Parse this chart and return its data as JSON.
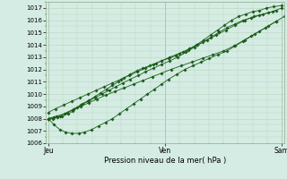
{
  "title": "",
  "xlabel": "Pression niveau de la mer( hPa )",
  "ylabel": "",
  "background_color": "#d5ece4",
  "grid_color": "#b8d4bc",
  "line_color": "#1a5c1a",
  "marker_color": "#1a5c1a",
  "ylim": [
    1006,
    1017.5
  ],
  "yticks": [
    1006,
    1007,
    1008,
    1009,
    1010,
    1011,
    1012,
    1013,
    1014,
    1015,
    1016,
    1017
  ],
  "xtick_labels": [
    "Jeu",
    "Ven",
    "Sam"
  ],
  "xtick_positions": [
    0,
    1,
    2
  ],
  "xlim": [
    -0.02,
    2.02
  ],
  "series_x": [
    [
      0.0,
      0.04,
      0.08,
      0.12,
      0.17,
      0.21,
      0.25,
      0.29,
      0.35,
      0.4,
      0.45,
      0.5,
      0.55,
      0.6,
      0.65,
      0.7,
      0.76,
      0.81,
      0.87,
      0.92,
      0.97,
      1.03,
      1.09,
      1.15,
      1.21,
      1.27,
      1.33,
      1.39,
      1.45,
      1.51,
      1.57,
      1.63,
      1.69,
      1.75,
      1.81,
      1.87,
      1.93,
      2.0
    ],
    [
      0.0,
      0.05,
      0.1,
      0.16,
      0.22,
      0.28,
      0.34,
      0.4,
      0.46,
      0.52,
      0.58,
      0.64,
      0.7,
      0.77,
      0.83,
      0.9,
      0.97,
      1.04,
      1.11,
      1.18,
      1.25,
      1.32,
      1.39,
      1.46,
      1.53,
      1.6,
      1.67,
      1.74,
      1.81,
      1.88,
      1.95
    ],
    [
      0.0,
      0.05,
      0.1,
      0.15,
      0.2,
      0.26,
      0.31,
      0.37,
      0.43,
      0.49,
      0.55,
      0.61,
      0.67,
      0.73,
      0.79,
      0.85,
      0.91,
      0.97,
      1.03,
      1.1,
      1.17,
      1.24,
      1.31,
      1.38,
      1.45,
      1.53,
      1.6,
      1.67,
      1.74,
      1.81,
      1.88,
      1.95,
      2.02
    ],
    [
      0.0,
      0.06,
      0.13,
      0.2,
      0.27,
      0.34,
      0.41,
      0.48,
      0.55,
      0.62,
      0.69,
      0.76,
      0.83,
      0.9,
      0.97,
      1.04,
      1.12,
      1.2,
      1.28,
      1.36,
      1.44,
      1.52,
      1.6,
      1.68,
      1.76,
      1.84,
      1.92,
      2.0
    ],
    [
      0.0,
      0.07,
      0.14,
      0.21,
      0.28,
      0.35,
      0.42,
      0.49,
      0.57,
      0.65,
      0.73,
      0.81,
      0.89,
      0.97,
      1.05,
      1.14,
      1.23,
      1.32,
      1.41,
      1.5,
      1.59,
      1.68,
      1.77,
      1.86,
      1.95
    ]
  ],
  "series_y": [
    [
      1008.0,
      1008.0,
      1008.1,
      1008.2,
      1008.4,
      1008.6,
      1008.9,
      1009.2,
      1009.5,
      1009.8,
      1010.1,
      1010.4,
      1010.7,
      1011.0,
      1011.3,
      1011.6,
      1011.9,
      1012.1,
      1012.3,
      1012.5,
      1012.7,
      1012.9,
      1013.1,
      1013.4,
      1013.7,
      1014.0,
      1014.4,
      1014.8,
      1015.2,
      1015.6,
      1016.0,
      1016.3,
      1016.5,
      1016.7,
      1016.8,
      1017.0,
      1017.1,
      1017.2
    ],
    [
      1008.0,
      1008.1,
      1008.2,
      1008.5,
      1008.8,
      1009.1,
      1009.4,
      1009.7,
      1010.0,
      1010.3,
      1010.6,
      1010.9,
      1011.2,
      1011.5,
      1011.8,
      1012.1,
      1012.4,
      1012.7,
      1013.0,
      1013.4,
      1013.8,
      1014.2,
      1014.6,
      1015.0,
      1015.4,
      1015.7,
      1016.0,
      1016.2,
      1016.4,
      1016.6,
      1016.8
    ],
    [
      1008.0,
      1007.5,
      1007.1,
      1006.9,
      1006.8,
      1006.8,
      1006.9,
      1007.1,
      1007.4,
      1007.7,
      1008.0,
      1008.4,
      1008.8,
      1009.2,
      1009.6,
      1010.0,
      1010.4,
      1010.8,
      1011.2,
      1011.6,
      1012.0,
      1012.3,
      1012.6,
      1012.9,
      1013.2,
      1013.5,
      1013.9,
      1014.3,
      1014.7,
      1015.1,
      1015.5,
      1015.9,
      1016.3
    ],
    [
      1008.5,
      1008.8,
      1009.1,
      1009.4,
      1009.7,
      1010.0,
      1010.3,
      1010.6,
      1010.9,
      1011.2,
      1011.5,
      1011.8,
      1012.1,
      1012.4,
      1012.7,
      1013.0,
      1013.3,
      1013.6,
      1014.0,
      1014.4,
      1014.8,
      1015.2,
      1015.6,
      1016.0,
      1016.3,
      1016.5,
      1016.7,
      1017.0
    ],
    [
      1008.0,
      1008.2,
      1008.4,
      1008.7,
      1009.0,
      1009.3,
      1009.6,
      1009.9,
      1010.2,
      1010.5,
      1010.8,
      1011.1,
      1011.4,
      1011.7,
      1012.0,
      1012.3,
      1012.6,
      1012.9,
      1013.2,
      1013.5,
      1013.9,
      1014.4,
      1014.9,
      1015.4,
      1015.9
    ]
  ]
}
